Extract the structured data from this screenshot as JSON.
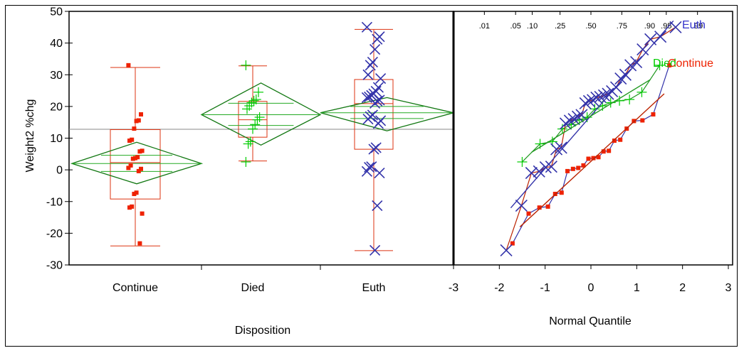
{
  "chart_data": [
    {
      "type": "box-diamond",
      "ylabel": "Weight2 %chg",
      "xlabel": "Disposition",
      "ylim": [
        -30,
        50
      ],
      "yticks": [
        "50",
        "40",
        "30",
        "20",
        "10",
        "0",
        "-10",
        "-20",
        "-30"
      ],
      "categories": [
        "Continue",
        "Died",
        "Euth"
      ],
      "grand_mean": 12.8,
      "groups": [
        {
          "name": "Continue",
          "color": "#ee2200",
          "marker": "square",
          "points": [
            33,
            17.5,
            15.6,
            15.4,
            13,
            9.5,
            9.2,
            6,
            5.8,
            4,
            3.7,
            3.5,
            1.4,
            0.6,
            0.3,
            -0.4,
            -7.2,
            -7.6,
            -11.6,
            -11.9,
            -13.8,
            -23.2
          ],
          "box": {
            "min": -24,
            "q1": -9.2,
            "median": 2.3,
            "q3": 12.7,
            "max": 32.3
          },
          "diamond": {
            "mean": 2.0,
            "lower": -4.4,
            "upper": 8.7,
            "overlap_lower": -0.5,
            "overlap_upper": 4.6
          }
        },
        {
          "name": "Died",
          "color": "#00cc00",
          "marker": "plus",
          "points": [
            33,
            24.5,
            22.2,
            21.8,
            21.2,
            20.2,
            19.2,
            16.6,
            15.8,
            14.3,
            12.9,
            8.9,
            8.2,
            2.5
          ],
          "box": {
            "min": 2.8,
            "q1": 10.3,
            "median": 15.8,
            "q3": 21.6,
            "max": 32.8
          },
          "diamond": {
            "mean": 17.4,
            "lower": 7.8,
            "upper": 27.4,
            "overlap_lower": 14.0,
            "overlap_upper": 21.0
          }
        },
        {
          "name": "Euth",
          "color": "#3333aa",
          "marker": "x",
          "points": [
            45,
            42,
            41.2,
            38,
            34,
            33,
            30,
            28.8,
            26,
            24.8,
            24,
            23.5,
            23,
            22.8,
            22,
            21.7,
            21,
            17.3,
            16.8,
            16,
            15.5,
            14.6,
            7,
            6.5,
            1,
            0.8,
            -0.5,
            -1,
            -11.3,
            -25.4
          ],
          "box": {
            "min": -25.5,
            "q1": 6.5,
            "median": 20.9,
            "q3": 28.5,
            "max": 44.3
          },
          "diamond": {
            "mean": 18.0,
            "lower": 12.3,
            "upper": 22.8,
            "overlap_lower": 16.2,
            "overlap_upper": 20.0
          }
        }
      ]
    },
    {
      "type": "normal-quantile",
      "xlabel": "Normal Quantile",
      "xlim": [
        -3,
        3
      ],
      "xticks": [
        "-3",
        "-2",
        "-1",
        "0",
        "1",
        "2",
        "3"
      ],
      "prob_ticks": [
        ".01",
        ".05",
        ".10",
        ".25",
        ".50",
        ".75",
        ".90",
        ".95",
        ".99"
      ],
      "prob_values": [
        0.01,
        0.05,
        0.1,
        0.25,
        0.5,
        0.75,
        0.9,
        0.95,
        0.99
      ],
      "series_labels": [
        "Euth",
        "Died",
        "Continue"
      ],
      "label_colors": [
        "#3333cc",
        "#00cc00",
        "#ee2200"
      ],
      "reference_lines": [
        {
          "name": "Euth",
          "color": "#3333aa",
          "x": [
            -1.75,
            1.8
          ],
          "y": [
            -12,
            47
          ]
        },
        {
          "name": "Died",
          "color": "#229922",
          "x": [
            -1.3,
            1.3
          ],
          "y": [
            5.5,
            28.5
          ]
        },
        {
          "name": "Continue",
          "color": "#bb2200",
          "x": [
            -1.55,
            1.6
          ],
          "y": [
            -18,
            24
          ]
        }
      ]
    }
  ]
}
